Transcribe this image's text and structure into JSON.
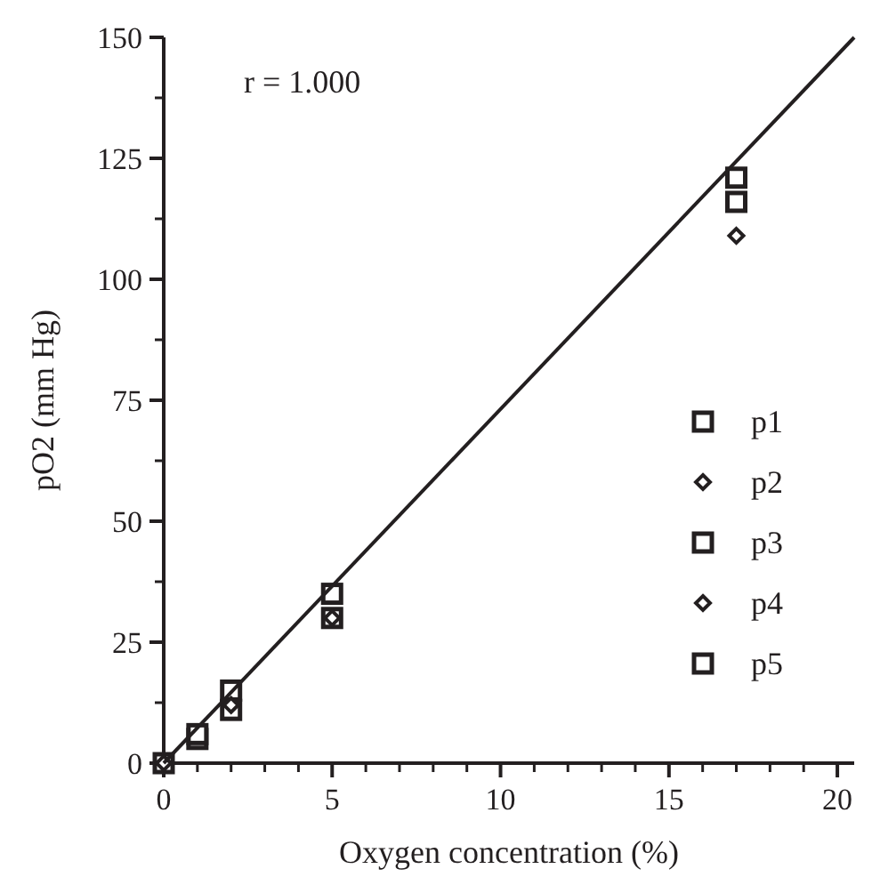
{
  "chart_data": {
    "type": "scatter",
    "xlabel": "Oxygen concentration (%)",
    "ylabel": "pO2 (mm Hg)",
    "annotations": [
      "r = 1.000"
    ],
    "x": [
      0,
      1,
      2,
      5,
      17
    ],
    "series": [
      {
        "name": "p1",
        "color": "#231f20",
        "marker": "square",
        "values": [
          0,
          5,
          15,
          30,
          null
        ]
      },
      {
        "name": "p2",
        "color": "#231f20",
        "marker": "diamond",
        "values": [
          0,
          null,
          null,
          30,
          109
        ]
      },
      {
        "name": "p3",
        "color": "#231f20",
        "marker": "square",
        "values": [
          null,
          null,
          11,
          null,
          116
        ]
      },
      {
        "name": "p4",
        "color": "#231f20",
        "marker": "diamond",
        "values": [
          null,
          null,
          12,
          null,
          null
        ]
      },
      {
        "name": "p5",
        "color": "#231f20",
        "marker": "square",
        "values": [
          null,
          6,
          null,
          35,
          121
        ]
      },
      {
        "type": "line",
        "color": "#231f20",
        "marker": "none",
        "x": [
          0,
          20.5
        ],
        "values": [
          0,
          150
        ]
      }
    ],
    "xlim": [
      0,
      20.5
    ],
    "ylim": [
      0,
      150
    ],
    "xticks": [
      0,
      5,
      10,
      15,
      20
    ],
    "yticks": [
      0,
      25,
      50,
      75,
      100,
      125,
      150
    ],
    "legend": "right",
    "grid": false
  }
}
